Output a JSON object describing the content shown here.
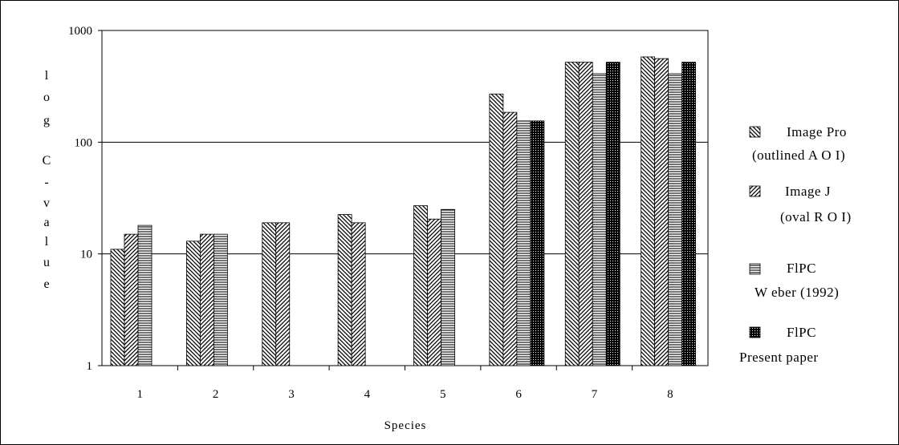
{
  "chart_data": {
    "type": "bar",
    "title": "",
    "xlabel": "Species",
    "ylabel": "log C-value",
    "y_scale": "log",
    "ylim": [
      1,
      1000
    ],
    "y_ticks": [
      "1",
      "10",
      "100",
      "1000"
    ],
    "grid": "horizontal major",
    "legend_position": "right",
    "categories": [
      "1",
      "2",
      "3",
      "4",
      "5",
      "6",
      "7",
      "8"
    ],
    "series": [
      {
        "name": "Image Pro (outlined AOI)",
        "legend_lines": [
          "Image Pro",
          "(outlined A O I)"
        ],
        "pattern": "diag-back",
        "values": [
          11,
          13,
          19,
          22.5,
          27,
          270,
          520,
          580
        ]
      },
      {
        "name": "Image J (oval ROI)",
        "legend_lines": [
          "Image J",
          "(oval R O I)"
        ],
        "pattern": "diag-fwd",
        "values": [
          15,
          15,
          19,
          19,
          20.5,
          185,
          520,
          560
        ]
      },
      {
        "name": "FlPC Weber (1992)",
        "legend_lines": [
          "FlPC",
          "W eber (1992)"
        ],
        "pattern": "horiz",
        "values": [
          18,
          15,
          null,
          null,
          25,
          155,
          410,
          410
        ]
      },
      {
        "name": "FlPC Present paper",
        "legend_lines": [
          "FlPC",
          "Present paper"
        ],
        "pattern": "dense",
        "values": [
          null,
          null,
          null,
          null,
          null,
          155,
          520,
          520
        ]
      }
    ]
  }
}
